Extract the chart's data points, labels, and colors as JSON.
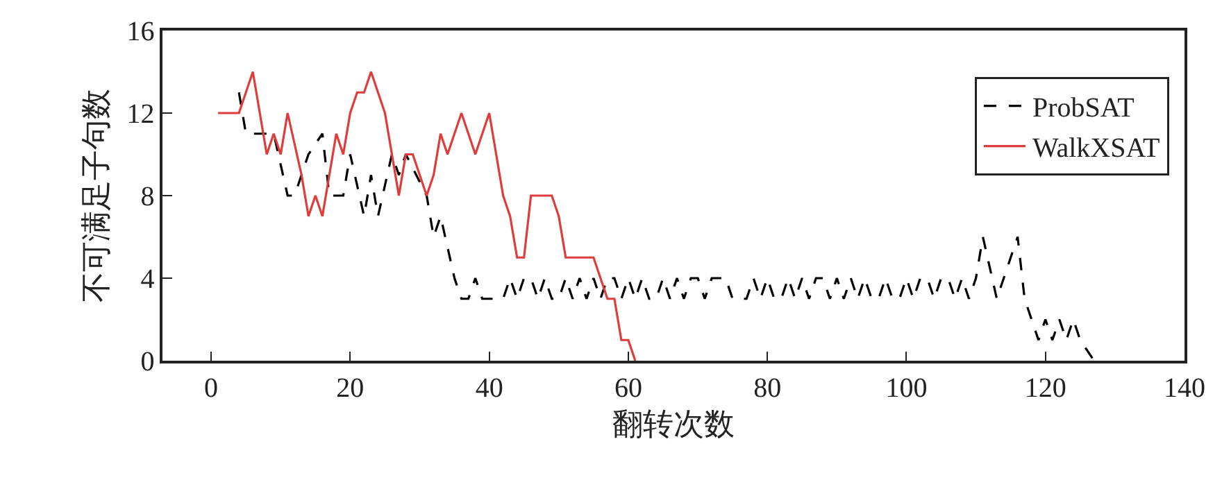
{
  "chart_data": {
    "type": "line",
    "xlabel": "翻转次数",
    "ylabel": "不可满足子句数",
    "xlim": [
      -7,
      140
    ],
    "xticks": [
      0,
      20,
      40,
      60,
      80,
      100,
      120,
      140
    ],
    "ylim": [
      0,
      16
    ],
    "yticks": [
      0,
      4,
      8,
      12,
      16
    ],
    "legend": "top right",
    "marker": "none",
    "series": [
      {
        "name": "ProbSAT",
        "color": "#000000",
        "line_style": "dashed",
        "x": [
          4,
          5,
          9,
          11,
          12,
          14,
          16,
          17,
          19,
          20,
          22,
          23,
          24,
          26,
          27,
          28,
          31,
          32,
          33,
          35,
          36,
          37,
          38,
          39,
          40,
          41,
          42,
          43,
          44,
          45,
          46,
          47,
          48,
          49,
          50,
          51,
          52,
          53,
          54,
          55,
          56,
          57,
          58,
          59,
          60,
          61,
          62,
          63,
          64,
          65,
          66,
          67,
          68,
          69,
          70,
          71,
          72,
          73,
          74,
          75,
          76,
          77,
          78,
          79,
          80,
          81,
          82,
          83,
          84,
          85,
          86,
          87,
          88,
          89,
          90,
          91,
          92,
          93,
          94,
          95,
          96,
          97,
          98,
          99,
          100,
          101,
          102,
          103,
          104,
          105,
          106,
          107,
          108,
          109,
          110,
          111,
          113,
          116,
          117,
          119,
          120,
          121,
          122,
          123,
          124,
          125,
          127
        ],
        "values": [
          13,
          11,
          11,
          8,
          8,
          10,
          11,
          8,
          8,
          10,
          7,
          9,
          7,
          10,
          9,
          10,
          8,
          6,
          7,
          4,
          3,
          3,
          4,
          3,
          3,
          3,
          3,
          4,
          3,
          4,
          4,
          3,
          4,
          3,
          3,
          4,
          3,
          4,
          3,
          4,
          3,
          4,
          4,
          3,
          4,
          3,
          4,
          3,
          3,
          4,
          3,
          4,
          3,
          4,
          4,
          3,
          4,
          4,
          4,
          3,
          3,
          3,
          4,
          3,
          4,
          3,
          3,
          4,
          3,
          4,
          3,
          4,
          4,
          3,
          4,
          3,
          4,
          3,
          4,
          3,
          3,
          4,
          3,
          3,
          4,
          3,
          4,
          4,
          3,
          4,
          4,
          3,
          4,
          3,
          4,
          6,
          3,
          6,
          3,
          1,
          2,
          1,
          2,
          1,
          2,
          1,
          0
        ]
      },
      {
        "name": "WalkXSAT",
        "color": "#e03c3c",
        "line_style": "solid",
        "x": [
          1,
          4,
          6,
          8,
          9,
          10,
          11,
          13,
          14,
          15,
          16,
          18,
          19,
          20,
          21,
          22,
          23,
          25,
          27,
          28,
          29,
          31,
          32,
          33,
          34,
          36,
          38,
          40,
          42,
          43,
          44,
          45,
          46,
          49,
          50,
          51,
          55,
          57,
          58,
          59,
          60,
          61
        ],
        "values": [
          12,
          12,
          14,
          10,
          11,
          10,
          12,
          9,
          7,
          8,
          7,
          11,
          10,
          12,
          13,
          13,
          14,
          12,
          8,
          10,
          10,
          8,
          9,
          11,
          10,
          12,
          10,
          12,
          8,
          7,
          5,
          5,
          8,
          8,
          7,
          5,
          5,
          3,
          3,
          1,
          1,
          0
        ]
      }
    ]
  }
}
